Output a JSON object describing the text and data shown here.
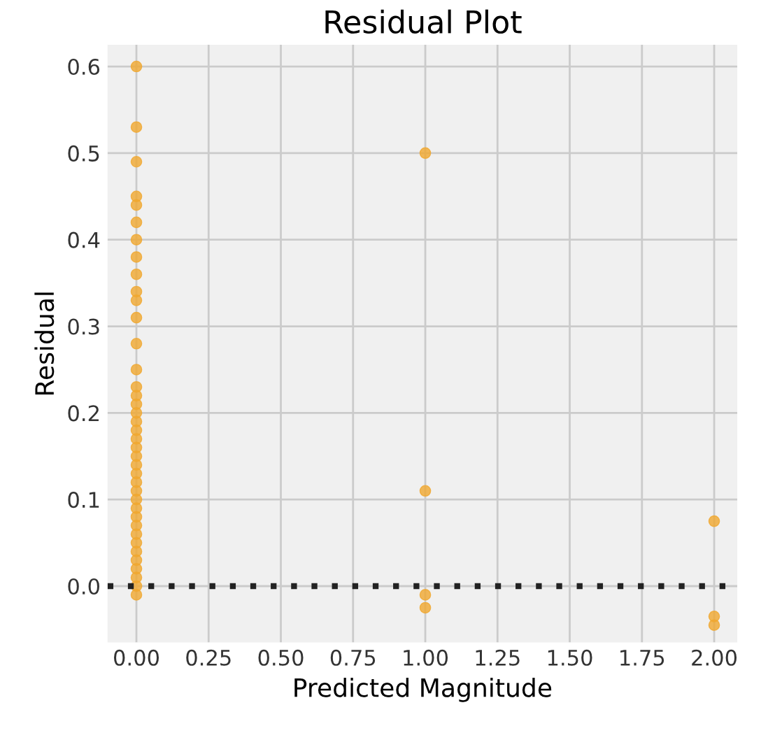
{
  "chart_data": {
    "type": "scatter",
    "title": "Residual Plot",
    "xlabel": "Predicted Magnitude",
    "ylabel": "Residual",
    "series": [
      {
        "color": "#f0a830",
        "x": [
          0,
          0,
          0,
          0,
          0,
          0,
          0,
          0,
          0,
          0,
          0,
          0,
          0,
          0,
          0,
          0,
          0,
          0,
          0,
          0,
          0,
          0,
          0,
          0,
          0,
          0,
          0,
          0,
          0,
          0,
          0,
          0,
          0,
          0,
          0,
          0,
          0,
          0,
          0,
          1,
          1,
          1,
          1,
          2,
          2,
          2
        ],
        "values": [
          0.6,
          0.53,
          0.49,
          0.45,
          0.44,
          0.42,
          0.4,
          0.38,
          0.36,
          0.34,
          0.33,
          0.31,
          0.28,
          0.25,
          0.23,
          0.22,
          0.21,
          0.2,
          0.19,
          0.18,
          0.17,
          0.16,
          0.15,
          0.14,
          0.13,
          0.12,
          0.11,
          0.1,
          0.09,
          0.08,
          0.07,
          0.06,
          0.05,
          0.04,
          0.03,
          0.02,
          0.01,
          0.0,
          -0.01,
          0.5,
          0.11,
          -0.01,
          -0.025,
          0.075,
          -0.035,
          -0.045
        ]
      }
    ],
    "ref_lines": [
      {
        "axis": "y",
        "value": 0,
        "color": "#222222",
        "line_style": "dotted"
      }
    ],
    "xlim": [
      -0.1,
      2.08
    ],
    "ylim": [
      -0.065,
      0.625
    ],
    "xticks": [
      {
        "value": 0,
        "label": "0.00"
      },
      {
        "value": 0.25,
        "label": "0.25"
      },
      {
        "value": 0.5,
        "label": "0.50"
      },
      {
        "value": 0.75,
        "label": "0.75"
      },
      {
        "value": 1,
        "label": "1.00"
      },
      {
        "value": 1.25,
        "label": "1.25"
      },
      {
        "value": 1.5,
        "label": "1.50"
      },
      {
        "value": 1.75,
        "label": "1.75"
      },
      {
        "value": 2,
        "label": "2.00"
      }
    ],
    "yticks": [
      {
        "value": 0,
        "label": "0.0"
      },
      0.1,
      0.2,
      0.3,
      0.4,
      0.5,
      0.6
    ],
    "grid": true,
    "marker": "circle"
  }
}
